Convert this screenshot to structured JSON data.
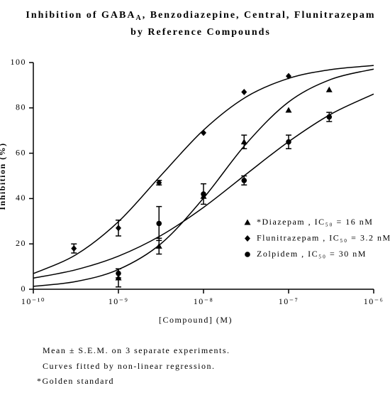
{
  "chart_data": {
    "type": "scatter",
    "title": [
      "Inhibition of GABA",
      "A",
      ", Benzodiazepine, Central, Flunitrazepam"
    ],
    "title_line2": "by Reference Compounds",
    "xlabel": "[Compound] (M)",
    "ylabel": "Inhibition (%)",
    "xscale": "log",
    "xlim": [
      1e-10,
      1e-06
    ],
    "xticks": [
      {
        "value": 1e-10,
        "label": "10⁻¹⁰"
      },
      {
        "value": 1e-09,
        "label": "10⁻⁹"
      },
      {
        "value": 1e-08,
        "label": "10⁻⁸"
      },
      {
        "value": 1e-07,
        "label": "10⁻⁷"
      },
      {
        "value": 1e-06,
        "label": "10⁻⁶"
      }
    ],
    "ylim": [
      0,
      100
    ],
    "yticks": [
      0,
      20,
      40,
      60,
      80,
      100
    ],
    "legend": "lower right",
    "series": [
      {
        "name": "*Diazepam , IC₅₀ = 16 nM",
        "color": "#000000",
        "marker": "triangle",
        "x": [
          1e-09,
          3e-09,
          1e-08,
          3e-08,
          1e-07,
          3e-07
        ],
        "values": [
          5,
          19,
          41,
          65,
          79,
          88
        ],
        "errors": [
          4,
          3.5,
          null,
          3,
          null,
          null
        ],
        "fit_x": [
          1e-10,
          3.162e-10,
          1e-09,
          3.162e-09,
          1e-08,
          3.162e-08,
          1e-07,
          3.162e-07,
          1e-06
        ],
        "fit_values": [
          1.3,
          3.4,
          8.7,
          20.1,
          40.2,
          64.1,
          82.6,
          92.6,
          97.1
        ]
      },
      {
        "name": "Flunitrazepam , IC₅₀ = 3.2 nM",
        "color": "#000000",
        "marker": "diamond",
        "x": [
          3e-10,
          1e-09,
          3e-09,
          1e-08,
          3e-08,
          1e-07
        ],
        "values": [
          18,
          27,
          47,
          69,
          87,
          94
        ],
        "errors": [
          2,
          3.5,
          1,
          null,
          null,
          null
        ],
        "fit_x": [
          1e-10,
          3.162e-10,
          1e-09,
          3.162e-09,
          1e-08,
          3.162e-08,
          1e-07,
          3.162e-07,
          1e-06
        ],
        "fit_values": [
          6.9,
          15.2,
          29.8,
          50.2,
          70.2,
          84.8,
          93.0,
          96.9,
          98.7
        ]
      },
      {
        "name": "Zolpidem , IC₅₀ = 30 nM",
        "color": "#000000",
        "marker": "circle",
        "x": [
          1e-09,
          3e-09,
          1e-08,
          3e-08,
          1e-07,
          3e-07
        ],
        "values": [
          7,
          29,
          42,
          48,
          65,
          76
        ],
        "errors": [
          2,
          7.5,
          4.5,
          2,
          3,
          2
        ],
        "fit_x": [
          1e-10,
          3.162e-10,
          1e-09,
          3.162e-09,
          1e-08,
          3.162e-08,
          1e-07,
          3.162e-07,
          1e-06
        ],
        "fit_values": [
          4.9,
          8.6,
          14.6,
          23.7,
          36.1,
          50.7,
          65.1,
          77.3,
          86.1
        ]
      }
    ],
    "notes": [
      "Mean ± S.E.M. on 3 separate experiments.",
      "Curves fitted by non-linear regression.",
      "*Golden standard"
    ]
  }
}
